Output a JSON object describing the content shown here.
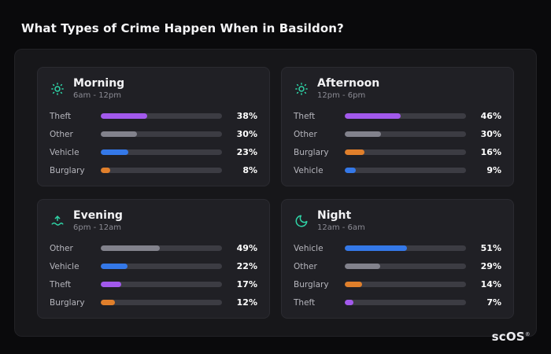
{
  "page_title": "What Types of Crime Happen When in Basildon?",
  "logo": {
    "text": "scOS",
    "mark": "®"
  },
  "colors": {
    "Theft": "#a259ec",
    "Other": "#82828c",
    "Vehicle": "#3478e8",
    "Burglary": "#e07f2b",
    "accent": "#2fd4a7",
    "track": "#3c3c43"
  },
  "chart_data": [
    {
      "type": "bar",
      "title": "Morning",
      "subtitle": "6am - 12pm",
      "icon": "sun-icon",
      "categories": [
        "Theft",
        "Other",
        "Vehicle",
        "Burglary"
      ],
      "values": [
        38,
        30,
        23,
        8
      ],
      "value_suffix": "%",
      "xlim": [
        0,
        100
      ]
    },
    {
      "type": "bar",
      "title": "Afternoon",
      "subtitle": "12pm - 6pm",
      "icon": "sun-icon",
      "categories": [
        "Theft",
        "Other",
        "Burglary",
        "Vehicle"
      ],
      "values": [
        46,
        30,
        16,
        9
      ],
      "value_suffix": "%",
      "xlim": [
        0,
        100
      ]
    },
    {
      "type": "bar",
      "title": "Evening",
      "subtitle": "6pm - 12am",
      "icon": "sunset-icon",
      "categories": [
        "Other",
        "Vehicle",
        "Theft",
        "Burglary"
      ],
      "values": [
        49,
        22,
        17,
        12
      ],
      "value_suffix": "%",
      "xlim": [
        0,
        100
      ]
    },
    {
      "type": "bar",
      "title": "Night",
      "subtitle": "12am - 6am",
      "icon": "moon-icon",
      "categories": [
        "Vehicle",
        "Other",
        "Burglary",
        "Theft"
      ],
      "values": [
        51,
        29,
        14,
        7
      ],
      "value_suffix": "%",
      "xlim": [
        0,
        100
      ]
    }
  ]
}
